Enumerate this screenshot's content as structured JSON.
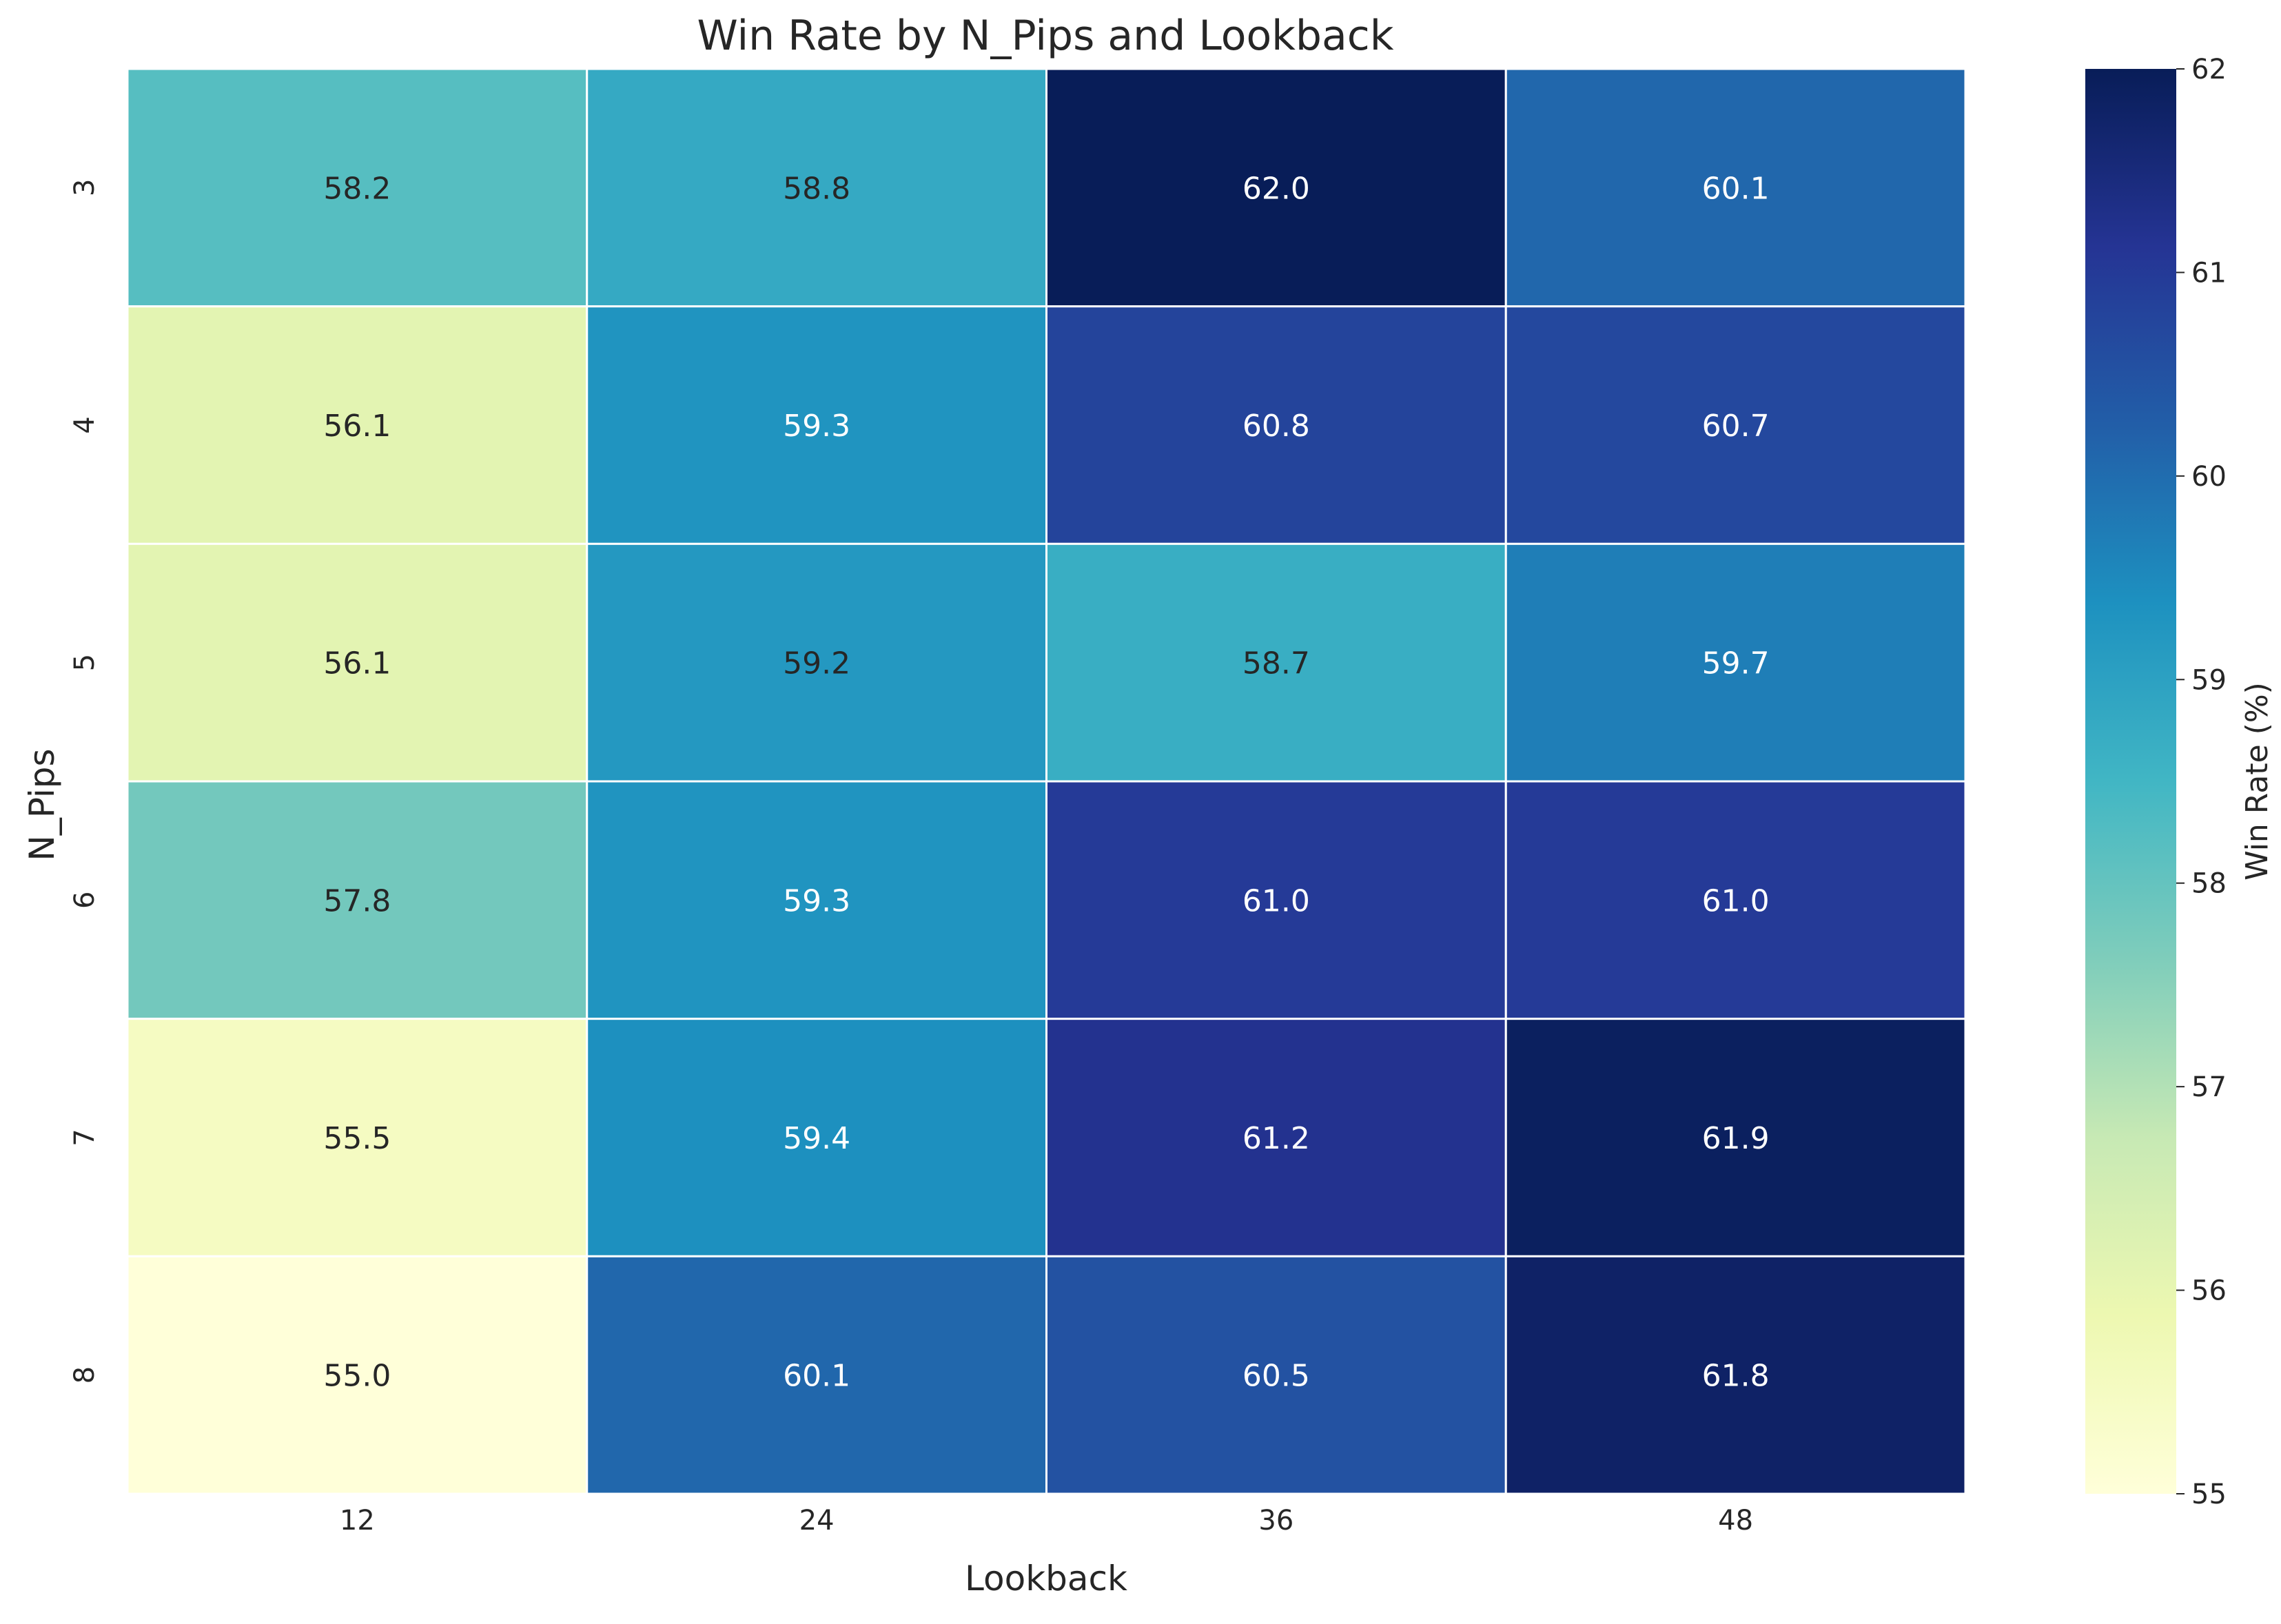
{
  "chart_data": {
    "type": "heatmap",
    "title": "Win Rate by N_Pips and Lookback",
    "xlabel": "Lookback",
    "ylabel": "N_Pips",
    "x_categories": [
      "12",
      "24",
      "36",
      "48"
    ],
    "y_categories": [
      "3",
      "4",
      "5",
      "6",
      "7",
      "8"
    ],
    "values": [
      [
        58.2,
        58.8,
        62.0,
        60.1
      ],
      [
        56.1,
        59.3,
        60.8,
        60.7
      ],
      [
        56.1,
        59.2,
        58.7,
        59.7
      ],
      [
        57.8,
        59.3,
        61.0,
        61.0
      ],
      [
        55.5,
        59.4,
        61.2,
        61.9
      ],
      [
        55.0,
        60.1,
        60.5,
        61.8
      ]
    ],
    "value_format": "0.0",
    "colormap": "YlGnBu",
    "colormap_stops": [
      "#ffffd9",
      "#edf8b1",
      "#c7e9b4",
      "#7fcdbb",
      "#41b6c4",
      "#1d91c0",
      "#225ea8",
      "#253494",
      "#081d58"
    ],
    "vmin": 55,
    "vmax": 62,
    "annotation_colors": {
      "dark": "#262626",
      "light": "#ffffff"
    },
    "cell_line_color": "#ffffff",
    "grid": false,
    "colorbar": {
      "label": "Win Rate (%)",
      "ticks": [
        "55",
        "56",
        "57",
        "58",
        "59",
        "60",
        "61",
        "62"
      ],
      "placement": "right"
    }
  }
}
